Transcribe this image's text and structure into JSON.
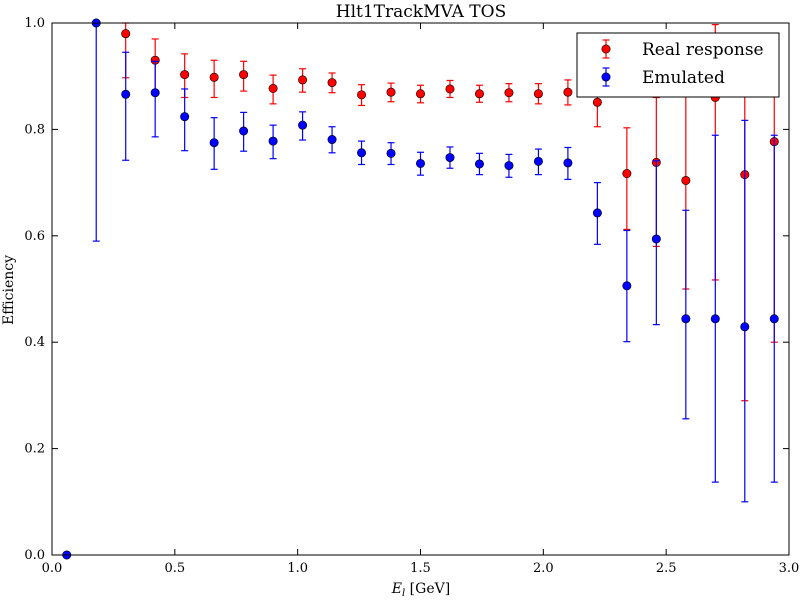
{
  "chart_data": {
    "type": "scatter",
    "title": "Hlt1TrackMVA TOS",
    "xlabel": {
      "symbol": "E",
      "subscript": "l",
      "unit": " [GeV]"
    },
    "ylabel": "Efficiency",
    "xlim": [
      0.0,
      3.0
    ],
    "ylim": [
      0.0,
      1.0
    ],
    "xticks": [
      0.0,
      0.5,
      1.0,
      1.5,
      2.0,
      2.5,
      3.0
    ],
    "yticks": [
      0.0,
      0.2,
      0.4,
      0.6,
      0.8,
      1.0
    ],
    "xtick_labels": [
      "0.0",
      "0.5",
      "1.0",
      "1.5",
      "2.0",
      "2.5",
      "3.0"
    ],
    "ytick_labels": [
      "0.0",
      "0.2",
      "0.4",
      "0.6",
      "0.8",
      "1.0"
    ],
    "grid": false,
    "legend_position": "top-right",
    "series": [
      {
        "name": "Real response",
        "color": "#ff0000",
        "points": [
          {
            "x": 0.3,
            "y": 0.98,
            "lo": 0.897,
            "hi": 1.0
          },
          {
            "x": 0.42,
            "y": 0.93,
            "lo": 0.865,
            "hi": 0.97
          },
          {
            "x": 0.54,
            "y": 0.903,
            "lo": 0.86,
            "hi": 0.942
          },
          {
            "x": 0.66,
            "y": 0.898,
            "lo": 0.86,
            "hi": 0.93
          },
          {
            "x": 0.78,
            "y": 0.903,
            "lo": 0.872,
            "hi": 0.928
          },
          {
            "x": 0.9,
            "y": 0.877,
            "lo": 0.848,
            "hi": 0.902
          },
          {
            "x": 1.02,
            "y": 0.893,
            "lo": 0.87,
            "hi": 0.914
          },
          {
            "x": 1.14,
            "y": 0.888,
            "lo": 0.869,
            "hi": 0.906
          },
          {
            "x": 1.26,
            "y": 0.865,
            "lo": 0.845,
            "hi": 0.884
          },
          {
            "x": 1.38,
            "y": 0.87,
            "lo": 0.852,
            "hi": 0.887
          },
          {
            "x": 1.5,
            "y": 0.867,
            "lo": 0.85,
            "hi": 0.883
          },
          {
            "x": 1.62,
            "y": 0.876,
            "lo": 0.86,
            "hi": 0.892
          },
          {
            "x": 1.74,
            "y": 0.867,
            "lo": 0.851,
            "hi": 0.883
          },
          {
            "x": 1.86,
            "y": 0.869,
            "lo": 0.852,
            "hi": 0.886
          },
          {
            "x": 1.98,
            "y": 0.867,
            "lo": 0.848,
            "hi": 0.886
          },
          {
            "x": 2.1,
            "y": 0.87,
            "lo": 0.846,
            "hi": 0.893
          },
          {
            "x": 2.22,
            "y": 0.851,
            "lo": 0.805,
            "hi": 0.89
          },
          {
            "x": 2.34,
            "y": 0.717,
            "lo": 0.612,
            "hi": 0.803
          },
          {
            "x": 2.46,
            "y": 0.738,
            "lo": 0.58,
            "hi": 0.86
          },
          {
            "x": 2.58,
            "y": 0.704,
            "lo": 0.5,
            "hi": 0.863
          },
          {
            "x": 2.7,
            "y": 0.86,
            "lo": 0.517,
            "hi": 0.997
          },
          {
            "x": 2.82,
            "y": 0.715,
            "lo": 0.29,
            "hi": 0.95
          },
          {
            "x": 2.94,
            "y": 0.777,
            "lo": 0.4,
            "hi": 0.96
          }
        ]
      },
      {
        "name": "Emulated",
        "color": "#0000ff",
        "points": [
          {
            "x": 0.06,
            "y": 0.0,
            "lo": 0.0,
            "hi": 0.0
          },
          {
            "x": 0.18,
            "y": 1.0,
            "lo": 0.59,
            "hi": 1.0
          },
          {
            "x": 0.3,
            "y": 0.866,
            "lo": 0.742,
            "hi": 0.945
          },
          {
            "x": 0.42,
            "y": 0.869,
            "lo": 0.786,
            "hi": 0.928
          },
          {
            "x": 0.54,
            "y": 0.824,
            "lo": 0.76,
            "hi": 0.876
          },
          {
            "x": 0.66,
            "y": 0.775,
            "lo": 0.725,
            "hi": 0.822
          },
          {
            "x": 0.78,
            "y": 0.797,
            "lo": 0.759,
            "hi": 0.832
          },
          {
            "x": 0.9,
            "y": 0.778,
            "lo": 0.745,
            "hi": 0.808
          },
          {
            "x": 1.02,
            "y": 0.808,
            "lo": 0.78,
            "hi": 0.833
          },
          {
            "x": 1.14,
            "y": 0.781,
            "lo": 0.756,
            "hi": 0.805
          },
          {
            "x": 1.26,
            "y": 0.756,
            "lo": 0.734,
            "hi": 0.778
          },
          {
            "x": 1.38,
            "y": 0.755,
            "lo": 0.734,
            "hi": 0.775
          },
          {
            "x": 1.5,
            "y": 0.736,
            "lo": 0.714,
            "hi": 0.757
          },
          {
            "x": 1.62,
            "y": 0.747,
            "lo": 0.727,
            "hi": 0.767
          },
          {
            "x": 1.74,
            "y": 0.735,
            "lo": 0.715,
            "hi": 0.755
          },
          {
            "x": 1.86,
            "y": 0.732,
            "lo": 0.71,
            "hi": 0.753
          },
          {
            "x": 1.98,
            "y": 0.74,
            "lo": 0.715,
            "hi": 0.763
          },
          {
            "x": 2.1,
            "y": 0.737,
            "lo": 0.706,
            "hi": 0.766
          },
          {
            "x": 2.22,
            "y": 0.643,
            "lo": 0.584,
            "hi": 0.7
          },
          {
            "x": 2.34,
            "y": 0.506,
            "lo": 0.401,
            "hi": 0.61
          },
          {
            "x": 2.46,
            "y": 0.594,
            "lo": 0.433,
            "hi": 0.741
          },
          {
            "x": 2.58,
            "y": 0.444,
            "lo": 0.256,
            "hi": 0.648
          },
          {
            "x": 2.7,
            "y": 0.444,
            "lo": 0.137,
            "hi": 0.789
          },
          {
            "x": 2.82,
            "y": 0.429,
            "lo": 0.1,
            "hi": 0.817
          },
          {
            "x": 2.94,
            "y": 0.444,
            "lo": 0.137,
            "hi": 0.789
          }
        ]
      }
    ]
  }
}
